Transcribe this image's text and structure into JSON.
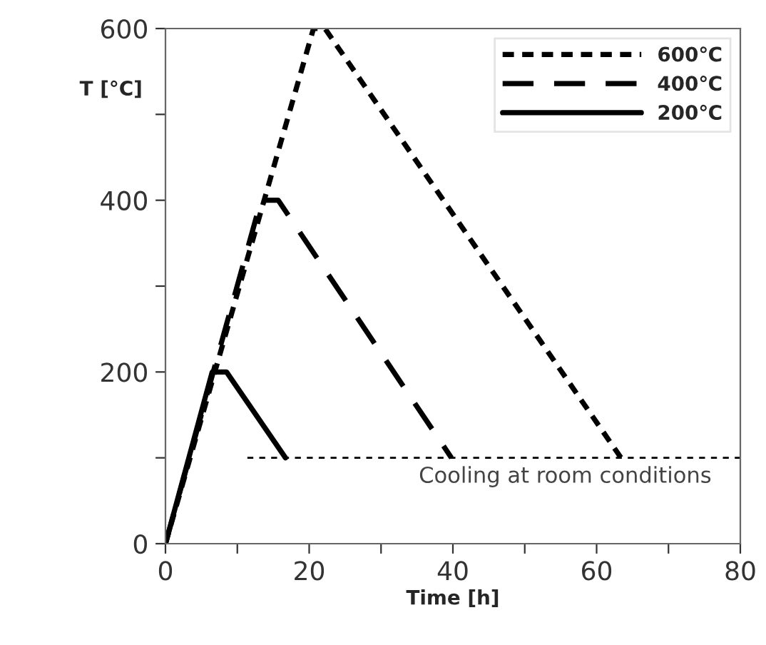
{
  "chart_data": {
    "type": "line",
    "xlabel": "Time [h]",
    "ylabel": "T [°C]",
    "xlim": [
      0,
      80
    ],
    "ylim": [
      0,
      600
    ],
    "xticks": [
      0,
      {
        "value": 10,
        "label": null
      },
      20,
      {
        "value": 30,
        "label": null
      },
      40,
      {
        "value": 50,
        "label": null
      },
      60,
      {
        "value": 70,
        "label": null
      },
      80
    ],
    "yticks": [
      0,
      {
        "value": 100,
        "label": null
      },
      200,
      {
        "value": 300,
        "label": null
      },
      400,
      {
        "value": 500,
        "label": null
      },
      600
    ],
    "legend": "top right",
    "grid": false,
    "series": [
      {
        "name": "600℃",
        "color": "#000000",
        "line_style": "dotted",
        "x": [
          0,
          20.6,
          22.2,
          63.4
        ],
        "values": [
          0,
          600,
          600,
          100
        ]
      },
      {
        "name": "400℃",
        "color": "#000000",
        "line_style": "dashed",
        "x": [
          0,
          13.3,
          15.7,
          39.8
        ],
        "values": [
          0,
          400,
          400,
          100
        ]
      },
      {
        "name": "200℃",
        "color": "#000000",
        "line_style": "solid",
        "x": [
          0,
          6.5,
          8.5,
          16.7
        ],
        "values": [
          0,
          200,
          200,
          100
        ]
      },
      {
        "color": "#000000",
        "line_style": "dotted",
        "x": [
          11.4,
          80
        ],
        "values": [
          100,
          100
        ]
      }
    ],
    "annotations": [
      "Cooling at room conditions"
    ]
  }
}
